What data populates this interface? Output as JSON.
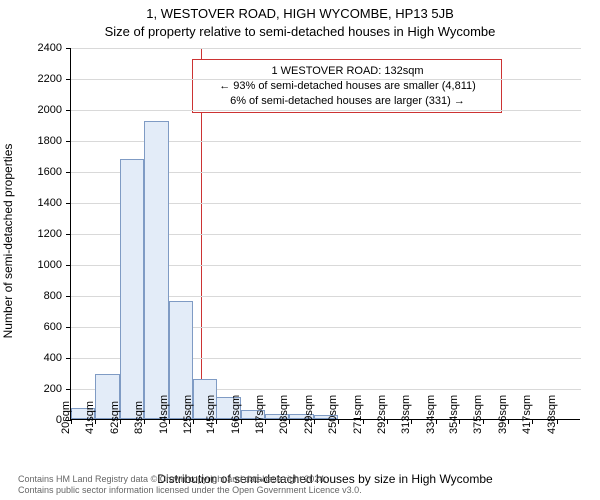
{
  "title_line1": "1, WESTOVER ROAD, HIGH WYCOMBE, HP13 5JB",
  "title_line2": "Size of property relative to semi-detached houses in High Wycombe",
  "ylabel": "Number of semi-detached properties",
  "xlabel": "Distribution of semi-detached houses by size in High Wycombe",
  "footer_line1": "Contains HM Land Registry data © Crown copyright and database right 2024.",
  "footer_line2": "Contains public sector information licensed under the Open Government Licence v3.0.",
  "chart": {
    "type": "histogram",
    "background_color": "#ffffff",
    "grid_color": "#d9d9d9",
    "axis_color": "#000000",
    "bar_fill": "#e3ecf8",
    "bar_border": "#7f9bc4",
    "vline_color": "#cc3333",
    "annotation_border": "#cc3333",
    "title_fontsize": 13,
    "tick_fontsize": 11,
    "label_fontsize": 12,
    "footer_fontsize": 9,
    "footer_color": "#666666",
    "x_min": 20,
    "x_max": 459,
    "y_min": 0,
    "y_max": 2400,
    "y_ticks": [
      0,
      200,
      400,
      600,
      800,
      1000,
      1200,
      1400,
      1600,
      1800,
      2000,
      2200,
      2400
    ],
    "x_ticks": [
      20,
      41,
      62,
      83,
      104,
      125,
      145,
      166,
      187,
      208,
      229,
      250,
      271,
      292,
      313,
      334,
      354,
      375,
      396,
      417,
      438
    ],
    "x_tick_suffix": "sqm",
    "bar_width_data": 21,
    "bars": [
      {
        "x": 20,
        "value": 70
      },
      {
        "x": 41,
        "value": 290
      },
      {
        "x": 62,
        "value": 1680
      },
      {
        "x": 83,
        "value": 1920
      },
      {
        "x": 104,
        "value": 760
      },
      {
        "x": 125,
        "value": 260
      },
      {
        "x": 145,
        "value": 140
      },
      {
        "x": 166,
        "value": 60
      },
      {
        "x": 187,
        "value": 35
      },
      {
        "x": 208,
        "value": 30
      },
      {
        "x": 229,
        "value": 25
      }
    ],
    "vline_at": 132,
    "annotation": {
      "line1": "1 WESTOVER ROAD: 132sqm",
      "line2": "← 93% of semi-detached houses are smaller (4,811)",
      "line3": "6% of semi-detached houses are larger (331) →",
      "x_center_data": 258,
      "y_top_data": 2330
    }
  }
}
